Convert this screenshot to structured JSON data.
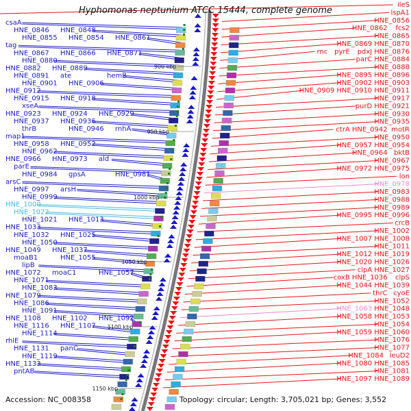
{
  "title": "Hyphomonas neptunium ATCC 15444, complete genome",
  "footer": {
    "accession": "Accession: NC_008358",
    "info": "Topology: circular; Length: 3,705,021 bp; Genes: 3,552"
  },
  "colors": {
    "minus_strand": "#1a1acc",
    "plus_strand": "#ee1111",
    "highlight_cyan": "#44bbdd",
    "highlight_pink": "#ee88cc",
    "backbone": "#777777",
    "tick": "#118811"
  },
  "ticks": [
    "900 kbp",
    "950 kbp",
    "1000 kbp",
    "1050 kbp",
    "1100 kbp",
    "1150 kbp"
  ],
  "left_labels": [
    "csaA",
    "HNE_0846",
    "HNE_0848",
    "HNE_0855",
    "HNE_0854",
    "HNE_0861",
    "tag",
    "HNE_0867",
    "HNE_0866",
    "HNE_0871",
    "HNE_0880",
    "HNE_0882",
    "HNE_0889",
    "HNE_0891",
    "ate",
    "hemB",
    "HNE_0901",
    "HNE_0906",
    "HNE_0912",
    "HNE_0915",
    "HNE_0918",
    "xseA",
    "HNE_0923",
    "HNE_0924",
    "HNE_0929",
    "HNE_0937",
    "HNE_0936",
    "thrB",
    "HNE_0946",
    "rnhA",
    "map1",
    "HNE_0958",
    "HNE_0952",
    "HNE_0962",
    "HNE_0966",
    "HNE_0973",
    "ald",
    "parE",
    "HNE_0984",
    "gpsA",
    "HNE_0981",
    "arsC",
    "HNE_0997",
    "arsH",
    "HNE_0999",
    "HNE_1000",
    "HNE_1022",
    "HNE_1021",
    "HNE_1013",
    "HNE_1033",
    "HNE_1032",
    "HNE_1025",
    "HNE_1050",
    "HNE_1049",
    "HNE_1037",
    "moaB1",
    "HNE_1055",
    "lipB",
    "HNE_1072",
    "moaC1",
    "HNE_1057",
    "HNE_1071",
    "HNE_1083",
    "HNE_1079",
    "HNE_1086",
    "HNE_1091",
    "HNE_1108",
    "HNE_1102",
    "HNE_1092",
    "HNE_1116",
    "HNE_1107",
    "HNE_1114",
    "rhlE",
    "HNE_1131",
    "panC",
    "HNE_1119",
    "HNE_1133",
    "pntAB"
  ],
  "right_labels": [
    "ileS",
    "lspA1",
    "HNE_0856",
    "HNE_0862",
    "fcs2",
    "HNE_0865",
    "HNE_0869",
    "HNE_0870",
    "rnc",
    "pyrE",
    "pdxJ",
    "HNE_0876",
    "parC",
    "HNE_0884",
    "HNE_0888",
    "HNE_0895",
    "HNE_0896",
    "HNE_0902",
    "HNE_0903",
    "HNE_0909",
    "HNE_0910",
    "HNE_0911",
    "HNE_0917",
    "purD",
    "HNE_0921",
    "HNE_0930",
    "HNE_0935",
    "ctrA",
    "HNE_0942",
    "motR",
    "HNE_0950",
    "HNE_0957",
    "HNE_0954",
    "HNE_0964",
    "bktB",
    "HNE_0967",
    "HNE_0972",
    "HNE_0975",
    "lon",
    "HNE_0978",
    "HNE_0983",
    "HNE_0988",
    "HNE_0989",
    "HNE_0995",
    "HNE_0996",
    "crcB",
    "HNE_1002",
    "HNE_1007",
    "HNE_1008",
    "HNE_1011",
    "HNE_1012",
    "HNE_1019",
    "HNE_1020",
    "HNE_1026",
    "clpA",
    "HNE_1027",
    "coxB",
    "HNE_1036",
    "clpS",
    "HNE_1044",
    "HNE_1039",
    "thrC",
    "cyoE",
    "HNE_1052",
    "HNE_1063",
    "HNE_1048",
    "HNE_1058",
    "HNE_1053",
    "HNE_1054",
    "HNE_1059",
    "HNE_1060",
    "HNE_1076",
    "HNE_1077",
    "HNE_1084",
    "leuD2",
    "HNE_1080",
    "HNE_1085",
    "HNE_1081",
    "HNE_1097",
    "HNE_1089"
  ]
}
